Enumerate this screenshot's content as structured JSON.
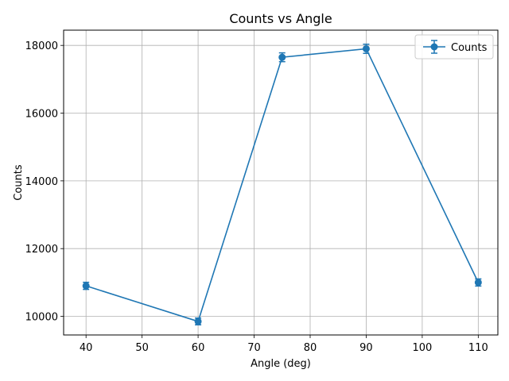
{
  "chart_data": {
    "type": "line",
    "title": "Counts vs Angle",
    "xlabel": "Angle (deg)",
    "ylabel": "Counts",
    "xlim": [
      36,
      113.5
    ],
    "ylim": [
      9450,
      18450
    ],
    "xticks": [
      40,
      50,
      60,
      70,
      80,
      90,
      100,
      110
    ],
    "yticks": [
      10000,
      12000,
      14000,
      16000,
      18000
    ],
    "grid": true,
    "legend_position": "top-right",
    "color": "#1f77b4",
    "marker": "circle",
    "error_bars": true,
    "series": [
      {
        "name": "Counts",
        "x": [
          40,
          60,
          75,
          90,
          110
        ],
        "y": [
          10900,
          9850,
          17650,
          17900,
          11000
        ],
        "err": [
          105,
          100,
          130,
          135,
          105
        ]
      }
    ]
  }
}
